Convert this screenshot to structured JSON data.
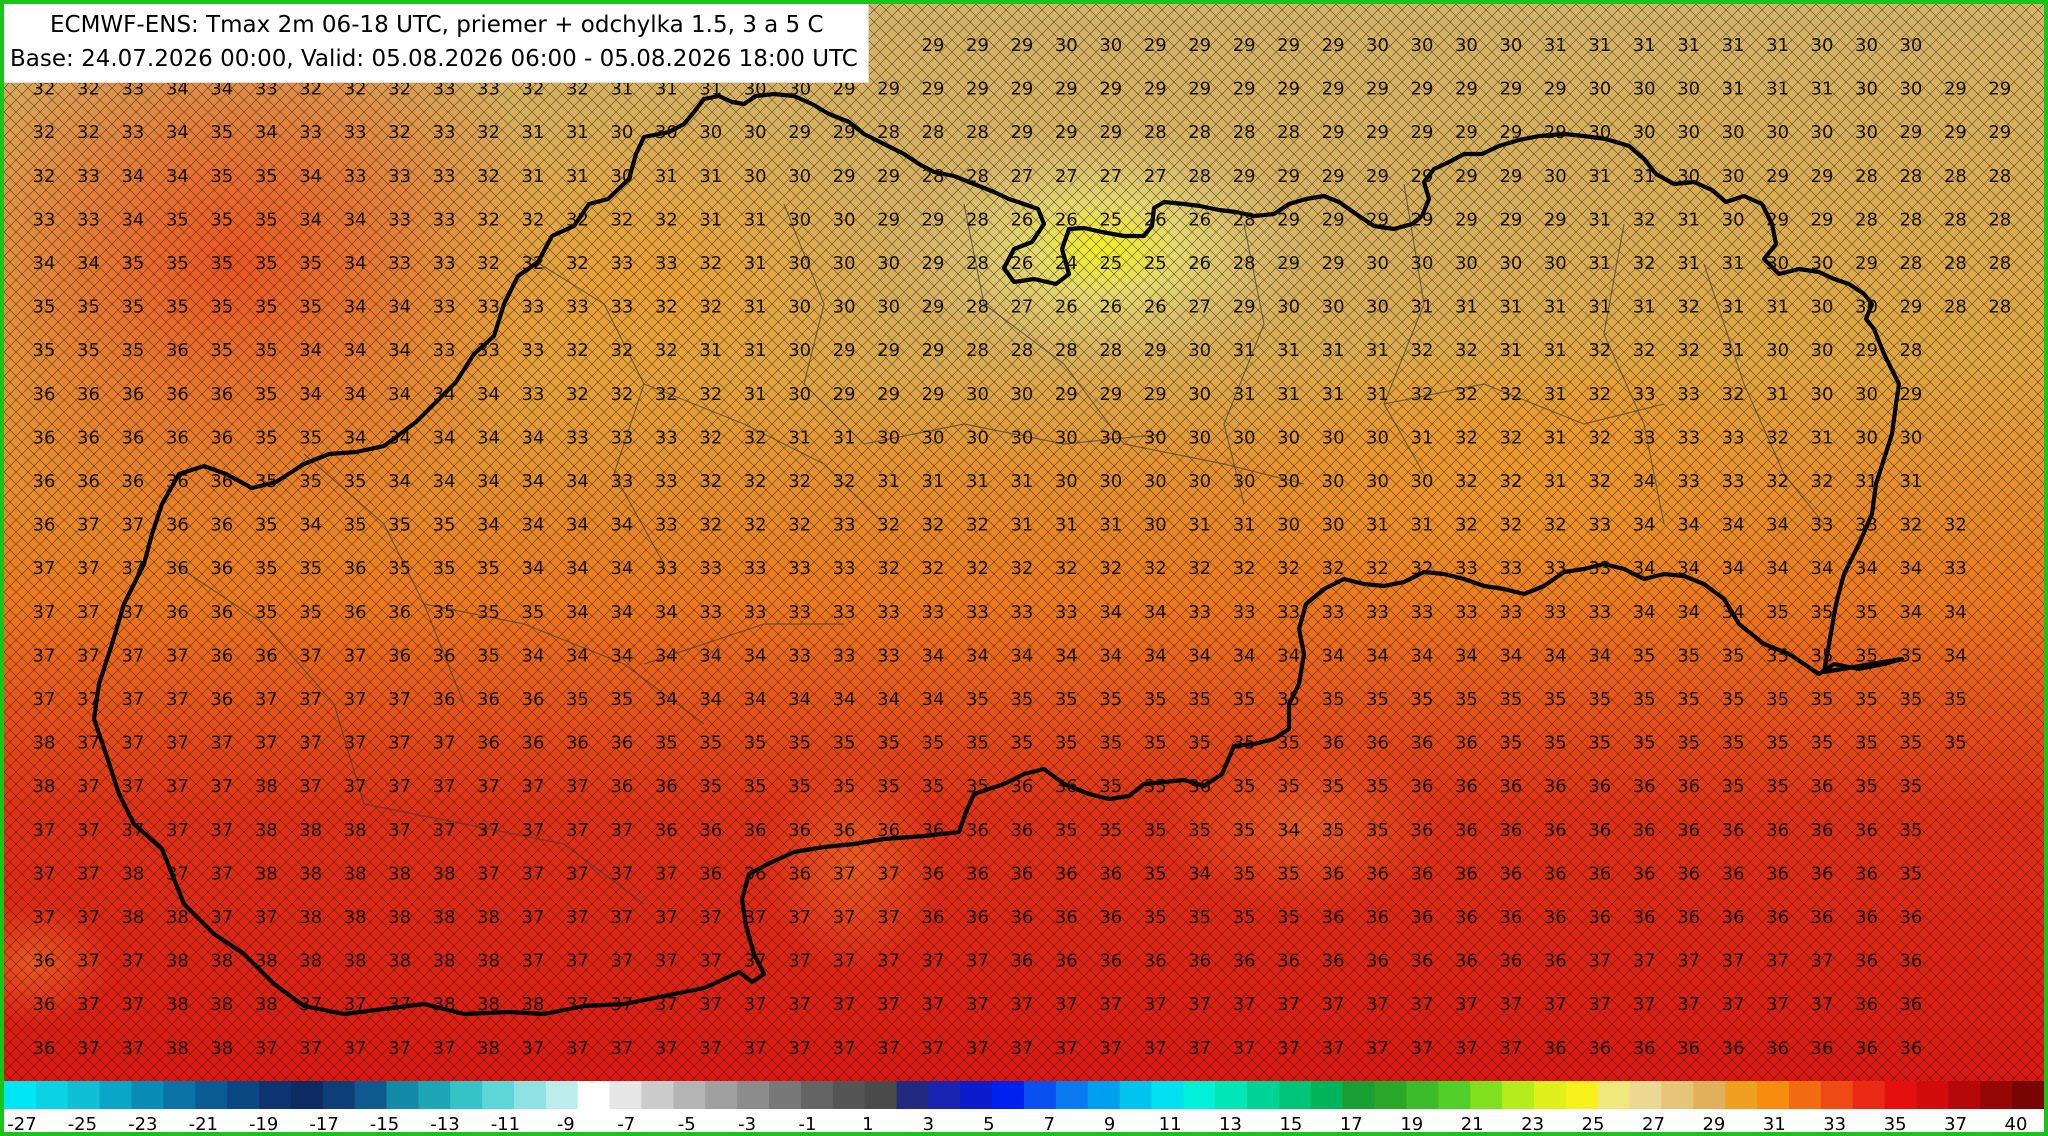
{
  "title": {
    "line1": "ECMWF-ENS: Tmax 2m 06-18 UTC, priemer + odchylka 1.5, 3 a 5 C",
    "line2": "Base: 24.07.2026 00:00, Valid: 05.08.2026 06:00 - 05.08.2026 18:00 UTC"
  },
  "grid_values": [
    [
      null,
      null,
      null,
      null,
      null,
      null,
      null,
      null,
      null,
      null,
      null,
      null,
      null,
      null,
      null,
      null,
      null,
      null,
      null,
      null,
      29,
      29,
      29,
      30,
      30,
      29,
      29,
      29,
      29,
      29,
      30,
      30,
      30,
      30,
      31,
      31,
      31,
      31,
      31,
      31,
      30,
      30,
      30
    ],
    [
      32,
      32,
      33,
      34,
      34,
      33,
      32,
      32,
      32,
      33,
      33,
      32,
      32,
      31,
      31,
      31,
      30,
      30,
      29,
      29,
      29,
      29,
      29,
      29,
      29,
      29,
      29,
      29,
      29,
      29,
      29,
      29,
      29,
      29,
      29,
      30,
      30,
      30,
      31,
      31,
      31,
      30,
      30,
      29,
      29,
      29
    ],
    [
      32,
      32,
      33,
      34,
      35,
      34,
      33,
      33,
      32,
      33,
      32,
      31,
      31,
      30,
      30,
      30,
      30,
      29,
      29,
      28,
      28,
      28,
      29,
      29,
      29,
      28,
      28,
      28,
      28,
      29,
      29,
      29,
      29,
      29,
      29,
      30,
      30,
      30,
      30,
      30,
      30,
      30,
      29,
      29,
      29,
      29
    ],
    [
      32,
      33,
      34,
      34,
      35,
      35,
      34,
      33,
      33,
      33,
      32,
      31,
      31,
      30,
      31,
      31,
      30,
      30,
      29,
      29,
      28,
      28,
      27,
      27,
      27,
      27,
      28,
      29,
      29,
      29,
      29,
      29,
      29,
      29,
      30,
      31,
      31,
      30,
      30,
      29,
      29,
      28,
      28,
      28,
      28
    ],
    [
      33,
      33,
      34,
      35,
      35,
      35,
      34,
      34,
      33,
      33,
      32,
      32,
      32,
      32,
      32,
      31,
      31,
      30,
      30,
      29,
      29,
      28,
      26,
      26,
      25,
      26,
      26,
      28,
      29,
      29,
      29,
      29,
      29,
      29,
      29,
      31,
      32,
      31,
      30,
      29,
      29,
      28,
      28,
      28,
      28
    ],
    [
      34,
      34,
      35,
      35,
      35,
      35,
      35,
      34,
      33,
      33,
      32,
      32,
      32,
      33,
      33,
      32,
      31,
      30,
      30,
      30,
      29,
      28,
      26,
      24,
      25,
      25,
      26,
      28,
      29,
      29,
      30,
      30,
      30,
      30,
      30,
      31,
      32,
      31,
      31,
      30,
      30,
      29,
      28,
      28,
      28
    ],
    [
      35,
      35,
      35,
      35,
      35,
      35,
      35,
      34,
      34,
      33,
      33,
      33,
      33,
      33,
      32,
      32,
      31,
      30,
      30,
      30,
      29,
      28,
      27,
      26,
      26,
      26,
      27,
      29,
      30,
      30,
      30,
      31,
      31,
      31,
      31,
      31,
      31,
      32,
      31,
      31,
      30,
      30,
      29,
      28,
      28
    ],
    [
      35,
      35,
      35,
      36,
      35,
      35,
      34,
      34,
      34,
      33,
      33,
      33,
      32,
      32,
      32,
      31,
      31,
      30,
      29,
      29,
      29,
      28,
      28,
      28,
      28,
      29,
      30,
      31,
      31,
      31,
      31,
      32,
      32,
      31,
      31,
      32,
      32,
      32,
      31,
      30,
      30,
      29,
      28
    ],
    [
      36,
      36,
      36,
      36,
      36,
      35,
      34,
      34,
      34,
      34,
      34,
      33,
      32,
      32,
      32,
      32,
      31,
      30,
      29,
      29,
      29,
      30,
      30,
      29,
      29,
      29,
      30,
      31,
      31,
      31,
      31,
      32,
      32,
      32,
      31,
      32,
      33,
      33,
      32,
      31,
      30,
      30,
      29
    ],
    [
      36,
      36,
      36,
      36,
      36,
      35,
      35,
      34,
      34,
      34,
      34,
      34,
      33,
      33,
      33,
      32,
      32,
      31,
      31,
      30,
      30,
      30,
      30,
      30,
      30,
      30,
      30,
      30,
      30,
      30,
      30,
      31,
      32,
      32,
      31,
      32,
      33,
      33,
      33,
      32,
      31,
      30,
      30
    ],
    [
      36,
      36,
      36,
      36,
      36,
      35,
      35,
      35,
      34,
      34,
      34,
      34,
      34,
      33,
      33,
      32,
      32,
      32,
      32,
      31,
      31,
      31,
      31,
      30,
      30,
      30,
      30,
      30,
      30,
      30,
      30,
      30,
      32,
      32,
      31,
      32,
      34,
      33,
      33,
      32,
      32,
      31,
      31
    ],
    [
      36,
      37,
      37,
      36,
      36,
      35,
      34,
      35,
      35,
      35,
      34,
      34,
      34,
      34,
      33,
      32,
      32,
      32,
      33,
      32,
      32,
      32,
      31,
      31,
      31,
      30,
      31,
      31,
      30,
      30,
      31,
      31,
      32,
      32,
      32,
      33,
      34,
      34,
      34,
      34,
      33,
      33,
      32,
      32
    ],
    [
      37,
      37,
      37,
      36,
      36,
      35,
      35,
      36,
      35,
      35,
      35,
      34,
      34,
      34,
      33,
      33,
      33,
      33,
      33,
      32,
      32,
      32,
      32,
      32,
      32,
      32,
      32,
      32,
      32,
      32,
      32,
      32,
      33,
      33,
      33,
      33,
      34,
      34,
      34,
      34,
      34,
      34,
      34,
      33
    ],
    [
      37,
      37,
      37,
      36,
      36,
      35,
      35,
      36,
      36,
      35,
      35,
      35,
      34,
      34,
      34,
      33,
      33,
      33,
      33,
      33,
      33,
      33,
      33,
      33,
      34,
      34,
      33,
      33,
      33,
      33,
      33,
      33,
      33,
      33,
      33,
      33,
      34,
      34,
      34,
      35,
      35,
      35,
      34,
      34
    ],
    [
      37,
      37,
      37,
      37,
      36,
      36,
      37,
      37,
      36,
      36,
      35,
      34,
      34,
      34,
      34,
      34,
      34,
      33,
      33,
      33,
      34,
      34,
      34,
      34,
      34,
      34,
      34,
      34,
      34,
      34,
      34,
      34,
      34,
      34,
      34,
      34,
      35,
      35,
      35,
      35,
      35,
      35,
      35,
      34
    ],
    [
      37,
      37,
      37,
      37,
      36,
      37,
      37,
      37,
      37,
      36,
      36,
      36,
      35,
      35,
      34,
      34,
      34,
      34,
      34,
      34,
      34,
      35,
      35,
      35,
      35,
      35,
      35,
      35,
      35,
      35,
      35,
      35,
      35,
      35,
      35,
      35,
      35,
      35,
      35,
      35,
      35,
      35,
      35,
      35
    ],
    [
      38,
      37,
      37,
      37,
      37,
      37,
      37,
      37,
      37,
      37,
      36,
      36,
      36,
      36,
      35,
      35,
      35,
      35,
      35,
      35,
      35,
      35,
      35,
      35,
      35,
      35,
      35,
      35,
      35,
      36,
      36,
      36,
      36,
      35,
      35,
      35,
      35,
      35,
      35,
      35,
      35,
      35,
      35,
      35
    ],
    [
      38,
      37,
      37,
      37,
      37,
      38,
      37,
      37,
      37,
      37,
      37,
      37,
      37,
      36,
      36,
      35,
      35,
      35,
      35,
      35,
      35,
      35,
      36,
      36,
      35,
      35,
      36,
      35,
      35,
      35,
      35,
      36,
      36,
      36,
      36,
      36,
      36,
      36,
      35,
      35,
      36,
      35,
      35
    ],
    [
      37,
      37,
      37,
      37,
      37,
      38,
      38,
      38,
      37,
      37,
      37,
      37,
      37,
      37,
      36,
      36,
      36,
      36,
      36,
      36,
      36,
      36,
      36,
      35,
      35,
      35,
      35,
      35,
      34,
      35,
      35,
      36,
      36,
      36,
      36,
      36,
      36,
      36,
      36,
      36,
      36,
      36,
      35
    ],
    [
      37,
      37,
      38,
      37,
      37,
      38,
      38,
      38,
      38,
      38,
      37,
      37,
      37,
      37,
      37,
      36,
      36,
      36,
      37,
      37,
      36,
      36,
      36,
      36,
      36,
      35,
      34,
      35,
      35,
      36,
      36,
      36,
      36,
      36,
      36,
      36,
      36,
      36,
      36,
      36,
      36,
      36,
      35
    ],
    [
      37,
      37,
      38,
      38,
      37,
      37,
      38,
      38,
      38,
      38,
      38,
      37,
      37,
      37,
      37,
      37,
      37,
      37,
      37,
      37,
      36,
      36,
      36,
      36,
      36,
      35,
      35,
      35,
      35,
      36,
      36,
      36,
      36,
      36,
      36,
      36,
      36,
      36,
      36,
      36,
      36,
      36,
      36
    ],
    [
      36,
      37,
      37,
      38,
      38,
      38,
      38,
      38,
      38,
      38,
      38,
      37,
      37,
      37,
      37,
      37,
      37,
      37,
      37,
      37,
      37,
      37,
      36,
      36,
      36,
      36,
      36,
      36,
      36,
      36,
      36,
      36,
      36,
      36,
      36,
      37,
      37,
      37,
      37,
      37,
      37,
      36,
      36
    ],
    [
      36,
      37,
      37,
      38,
      38,
      38,
      37,
      37,
      37,
      38,
      38,
      38,
      37,
      37,
      37,
      37,
      37,
      37,
      37,
      37,
      37,
      37,
      37,
      37,
      37,
      37,
      37,
      37,
      37,
      37,
      37,
      37,
      37,
      37,
      37,
      37,
      37,
      37,
      37,
      37,
      37,
      36,
      36
    ],
    [
      36,
      37,
      37,
      38,
      38,
      37,
      37,
      37,
      37,
      37,
      38,
      37,
      37,
      37,
      37,
      37,
      37,
      37,
      37,
      37,
      37,
      37,
      37,
      37,
      37,
      37,
      37,
      37,
      37,
      37,
      37,
      37,
      37,
      37,
      36,
      36,
      36,
      36,
      36,
      36,
      36,
      36,
      36
    ]
  ],
  "legend": {
    "labels": [
      "-27",
      "-25",
      "-23",
      "-21",
      "-19",
      "-17",
      "-15",
      "-13",
      "-11",
      "-9",
      "-7",
      "-5",
      "-3",
      "-1",
      "1",
      "3",
      "5",
      "7",
      "9",
      "11",
      "13",
      "15",
      "17",
      "19",
      "21",
      "23",
      "25",
      "27",
      "29",
      "31",
      "33",
      "35",
      "37",
      "40"
    ],
    "colors": [
      "#00e6f5",
      "#0cd2e6",
      "#0fbfd6",
      "#0aa6c8",
      "#0a8cb8",
      "#0a72a6",
      "#0a5a94",
      "#0a4682",
      "#0b3470",
      "#0d2a62",
      "#0d3e78",
      "#0e5a8e",
      "#138aa8",
      "#1ca6b8",
      "#34c4c8",
      "#5cd6d6",
      "#8ee2e2",
      "#bcecec",
      "#ffffff",
      "#e6e6e6",
      "#cccccc",
      "#b4b4b4",
      "#a0a0a0",
      "#8c8c8c",
      "#787878",
      "#646464",
      "#555555",
      "#4a4a4a",
      "#222a80",
      "#1a24b0",
      "#0a1ccc",
      "#0020f0",
      "#0a50f0",
      "#0a7af0",
      "#00a0f0",
      "#00c4f0",
      "#00e0f0",
      "#00f0d8",
      "#00e6b4",
      "#00d494",
      "#00c478",
      "#00b45a",
      "#1aa032",
      "#2aa82a",
      "#3cbc2a",
      "#50d028",
      "#80e020",
      "#b4ec1c",
      "#e0f01a",
      "#f8f01c",
      "#f0e87a",
      "#ecd890",
      "#e6c478",
      "#e0b05a",
      "#f0a020",
      "#f88c10",
      "#f46a10",
      "#f04a14",
      "#ec2a14",
      "#e41010",
      "#d20c0c",
      "#b40808",
      "#960606",
      "#7a0404"
    ]
  }
}
